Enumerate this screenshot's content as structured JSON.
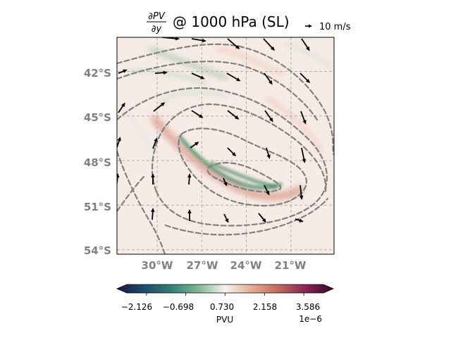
{
  "chart_data": {
    "type": "heatmap",
    "title": {
      "numerator": "∂PV",
      "denominator": "∂y",
      "suffix": "@ 1000 hPa (SL)"
    },
    "quiver_key": "10 m/s",
    "lon_ticks": [
      "30°W",
      "27°W",
      "24°W",
      "21°W"
    ],
    "lon_values": [
      -30,
      -27,
      -24,
      -21
    ],
    "lat_ticks": [
      "42°S",
      "45°S",
      "48°S",
      "51°S",
      "54°S"
    ],
    "lat_values": [
      -42,
      -45,
      -48,
      -51,
      -54
    ],
    "xlim": [
      -32.7,
      -18.1
    ],
    "ylim": [
      -54.3,
      -39.7
    ],
    "grid": true,
    "colorbar": {
      "label": "PVU",
      "ticks": [
        "−2.126",
        "−0.698",
        "0.730",
        "2.158",
        "3.586"
      ],
      "tick_values": [
        -2.126,
        -0.698,
        0.73,
        2.158,
        3.586
      ],
      "range": [
        -2.84,
        4.3
      ],
      "exponent": "1e−6",
      "colormap": "curl",
      "colors": [
        "#1b1740",
        "#1f4a6e",
        "#2f8075",
        "#7fb592",
        "#f7f2ef",
        "#e3ab93",
        "#c2665a",
        "#8b2253",
        "#350c2b"
      ]
    },
    "contour_color": "#808080",
    "arrow_color": "#000000"
  }
}
